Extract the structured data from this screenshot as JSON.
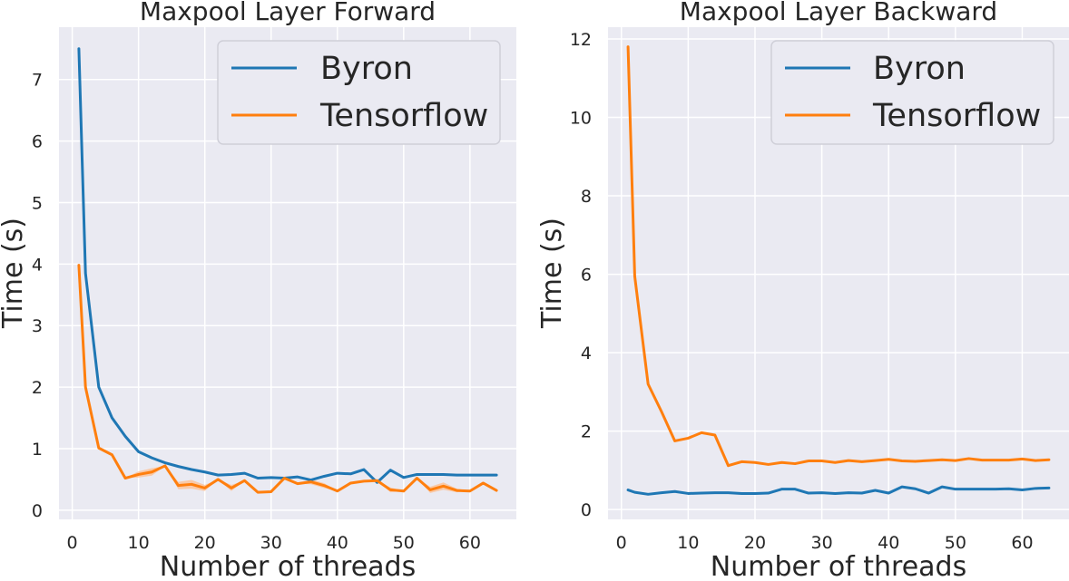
{
  "colors": {
    "axes_background": "#EAEAF2",
    "grid": "#FFFFFF",
    "byron": "#1F77B4",
    "tensorflow": "#FF7F0E",
    "tensorflow_band": "#FFBB88"
  },
  "chart_data": [
    {
      "type": "line",
      "title": "Maxpool Layer Forward",
      "xlabel": "Number of threads",
      "ylabel": "Time (s)",
      "xlim": [
        -2,
        67
      ],
      "ylim": [
        -0.15,
        7.85
      ],
      "xticks": [
        0,
        10,
        20,
        30,
        40,
        50,
        60
      ],
      "yticks": [
        0,
        1,
        2,
        3,
        4,
        5,
        6,
        7
      ],
      "grid": true,
      "legend": {
        "placement": "top-right",
        "entries": [
          "Byron",
          "Tensorflow"
        ]
      },
      "x": [
        1,
        2,
        4,
        6,
        8,
        10,
        12,
        14,
        16,
        18,
        20,
        22,
        24,
        26,
        28,
        30,
        32,
        34,
        36,
        38,
        40,
        42,
        44,
        46,
        48,
        50,
        52,
        54,
        56,
        58,
        60,
        62,
        64
      ],
      "series": [
        {
          "name": "Byron",
          "color": "#1F77B4",
          "values": [
            7.5,
            3.85,
            2.0,
            1.5,
            1.2,
            0.95,
            0.85,
            0.77,
            0.71,
            0.66,
            0.62,
            0.57,
            0.58,
            0.6,
            0.52,
            0.53,
            0.52,
            0.54,
            0.49,
            0.55,
            0.6,
            0.59,
            0.66,
            0.45,
            0.65,
            0.53,
            0.58,
            0.58,
            0.58,
            0.57,
            0.57,
            0.57,
            0.57
          ]
        },
        {
          "name": "Tensorflow",
          "color": "#FF7F0E",
          "values": [
            3.98,
            2.0,
            1.01,
            0.9,
            0.52,
            0.58,
            0.62,
            0.72,
            0.4,
            0.42,
            0.36,
            0.5,
            0.36,
            0.48,
            0.29,
            0.3,
            0.52,
            0.43,
            0.46,
            0.4,
            0.31,
            0.44,
            0.47,
            0.48,
            0.33,
            0.31,
            0.52,
            0.33,
            0.39,
            0.32,
            0.31,
            0.44,
            0.32
          ],
          "band": [
            0.0,
            0.0,
            0.0,
            0.0,
            0.0,
            0.05,
            0.06,
            0.0,
            0.06,
            0.07,
            0.05,
            0.0,
            0.05,
            0.0,
            0.0,
            0.0,
            0.0,
            0.0,
            0.04,
            0.04,
            0.0,
            0.0,
            0.0,
            0.0,
            0.04,
            0.0,
            0.0,
            0.05,
            0.06,
            0.03,
            0.0,
            0.0,
            0.0
          ]
        }
      ]
    },
    {
      "type": "line",
      "title": "Maxpool Layer Backward",
      "xlabel": "Number of threads",
      "ylabel": "Time (s)",
      "xlim": [
        -2,
        67
      ],
      "ylim": [
        -0.25,
        12.3
      ],
      "xticks": [
        0,
        10,
        20,
        30,
        40,
        50,
        60
      ],
      "yticks": [
        0,
        2,
        4,
        6,
        8,
        10,
        12
      ],
      "grid": true,
      "legend": {
        "placement": "top-right",
        "entries": [
          "Byron",
          "Tensorflow"
        ]
      },
      "x": [
        1,
        2,
        4,
        6,
        8,
        10,
        12,
        14,
        16,
        18,
        20,
        22,
        24,
        26,
        28,
        30,
        32,
        34,
        36,
        38,
        40,
        42,
        44,
        46,
        48,
        50,
        52,
        54,
        56,
        58,
        60,
        62,
        64
      ],
      "series": [
        {
          "name": "Byron",
          "color": "#1F77B4",
          "values": [
            0.5,
            0.44,
            0.39,
            0.43,
            0.46,
            0.41,
            0.42,
            0.43,
            0.43,
            0.41,
            0.41,
            0.42,
            0.52,
            0.52,
            0.42,
            0.43,
            0.41,
            0.43,
            0.42,
            0.49,
            0.42,
            0.58,
            0.53,
            0.42,
            0.58,
            0.52,
            0.52,
            0.52,
            0.52,
            0.53,
            0.5,
            0.54,
            0.55
          ]
        },
        {
          "name": "Tensorflow",
          "color": "#FF7F0E",
          "values": [
            11.8,
            5.95,
            3.2,
            2.5,
            1.75,
            1.82,
            1.96,
            1.9,
            1.12,
            1.22,
            1.2,
            1.15,
            1.2,
            1.17,
            1.24,
            1.24,
            1.2,
            1.25,
            1.22,
            1.25,
            1.28,
            1.24,
            1.23,
            1.25,
            1.27,
            1.25,
            1.3,
            1.26,
            1.26,
            1.26,
            1.29,
            1.25,
            1.27
          ]
        }
      ]
    }
  ]
}
